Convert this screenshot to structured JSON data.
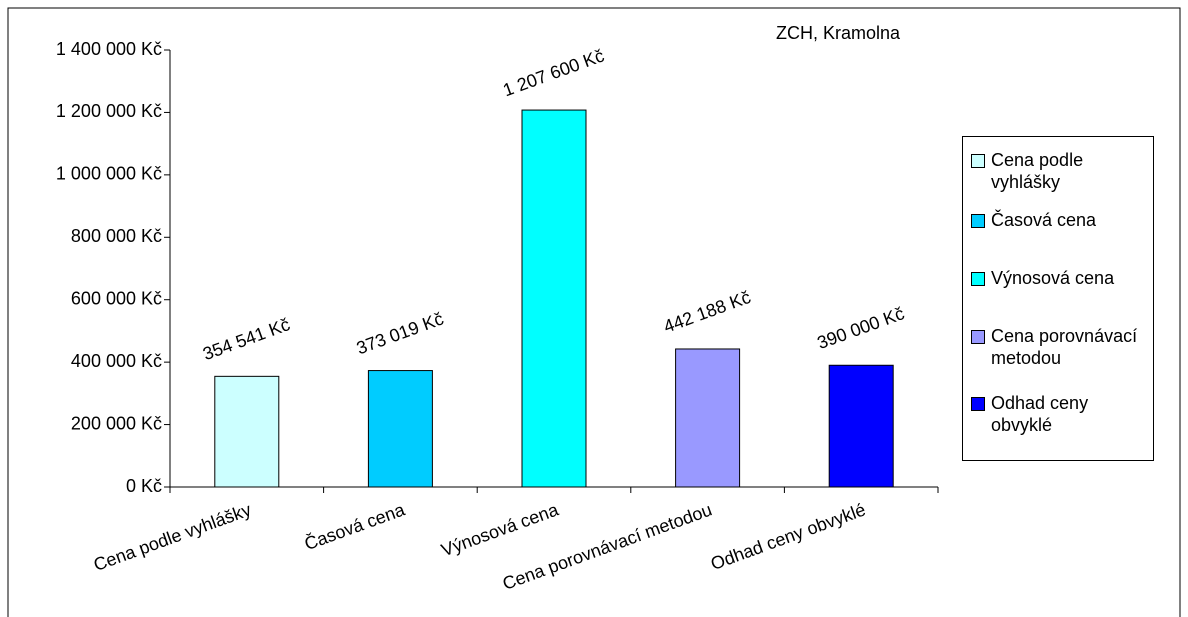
{
  "chart_data": {
    "type": "bar",
    "title": "ZCH, Kramolna",
    "categories": [
      "Cena podle vyhlášky",
      "Časová cena",
      "Výnosová cena",
      "Cena porovnávací metodou",
      "Odhad ceny obvyklé"
    ],
    "values": [
      354541,
      373019,
      1207600,
      442188,
      390000
    ],
    "value_labels": [
      "354 541 Kč",
      "373 019 Kč",
      "1 207 600 Kč",
      "442 188 Kč",
      "390 000 Kč"
    ],
    "colors": [
      "#ccffff",
      "#00ccff",
      "#00ffff",
      "#9999ff",
      "#0000ff"
    ],
    "ylim": [
      0,
      1400000
    ],
    "yticks": [
      {
        "value": 0,
        "label": "0 Kč"
      },
      {
        "value": 200000,
        "label": "200 000 Kč"
      },
      {
        "value": 400000,
        "label": "400 000 Kč"
      },
      {
        "value": 600000,
        "label": "600 000 Kč"
      },
      {
        "value": 800000,
        "label": "800 000 Kč"
      },
      {
        "value": 1000000,
        "label": "1 000 000 Kč"
      },
      {
        "value": 1200000,
        "label": "1 200 000 Kč"
      },
      {
        "value": 1400000,
        "label": "1 400 000 Kč"
      }
    ],
    "legend": "right"
  }
}
